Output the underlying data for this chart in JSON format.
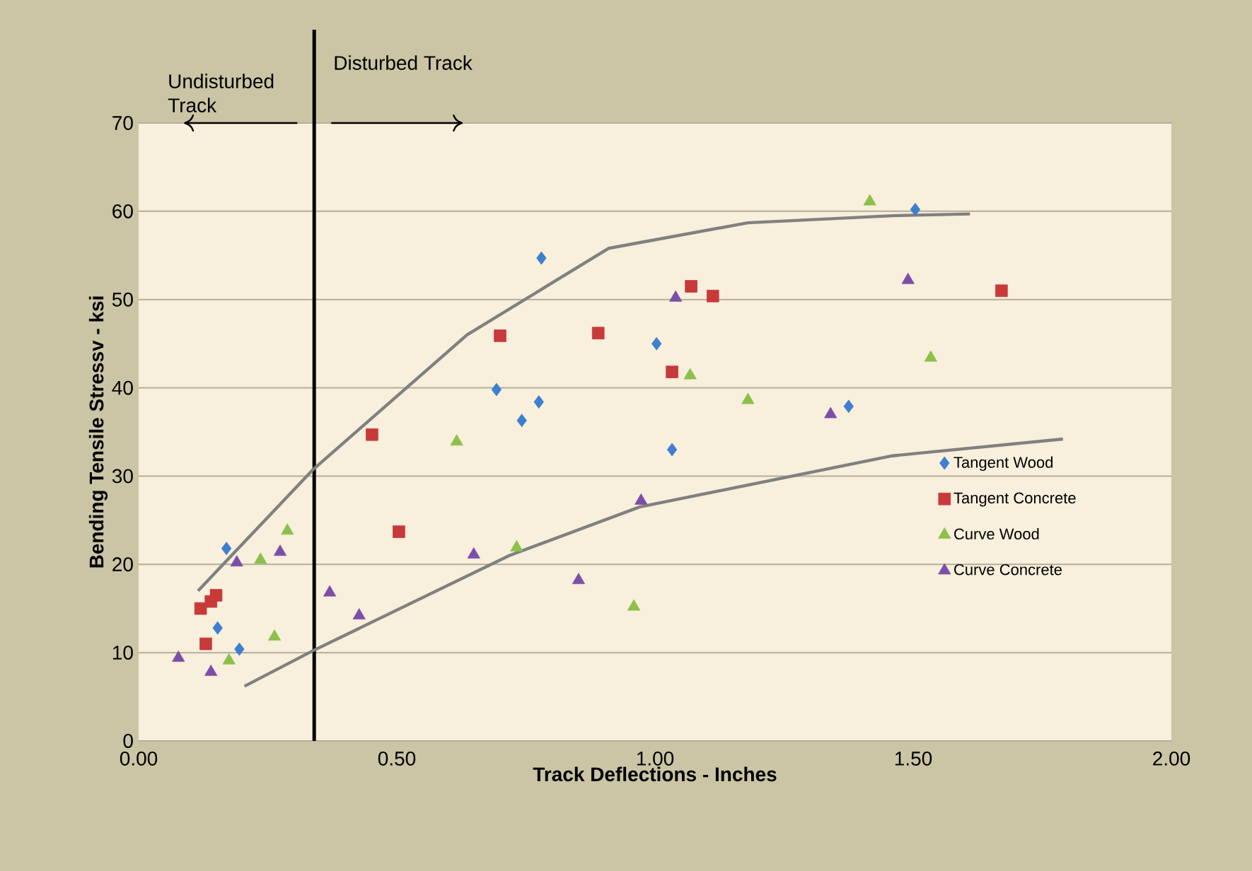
{
  "chart_data": {
    "type": "scatter",
    "xlabel": "Track Deflections - Inches",
    "ylabel": "Bending Tensile Stressv - ksi",
    "annotations": [
      "Undisturbed Track",
      "Disturbed Track"
    ],
    "xlim": [
      0,
      2
    ],
    "ylim": [
      0,
      70
    ],
    "xticks": [
      {
        "value": 0,
        "label": "0.00"
      },
      {
        "value": 0.5,
        "label": "0.50"
      },
      {
        "value": 1,
        "label": "1.00"
      },
      {
        "value": 1.5,
        "label": "1.50"
      },
      {
        "value": 2,
        "label": "2.00"
      }
    ],
    "yticks": [
      0,
      10,
      20,
      30,
      40,
      50,
      60,
      70
    ],
    "grid": "y",
    "legend": "right",
    "ref_lines": [
      {
        "axis": "x",
        "value": 0.34,
        "color": "#000000"
      }
    ],
    "series": [
      {
        "name": "Tangent Wood",
        "color": "#3e7fd0",
        "marker": "diamond",
        "x": [
          0.17,
          0.153,
          0.195,
          0.693,
          0.78,
          1.003,
          0.775,
          0.742,
          1.375,
          1.033,
          1.504
        ],
        "values": [
          21.8,
          12.8,
          10.4,
          39.8,
          54.7,
          45.0,
          38.4,
          36.3,
          37.9,
          33.0,
          60.2
        ]
      },
      {
        "name": "Tangent Concrete",
        "color": "#c8393a",
        "marker": "square",
        "x": [
          0.12,
          0.14,
          0.15,
          0.13,
          0.504,
          0.452,
          0.7,
          1.07,
          1.112,
          0.89,
          1.033,
          1.671
        ],
        "values": [
          15.0,
          15.8,
          16.5,
          11.0,
          23.7,
          34.7,
          45.9,
          51.5,
          50.4,
          46.2,
          41.8,
          51.0
        ]
      },
      {
        "name": "Curve Wood",
        "color": "#8cc04a",
        "marker": "triangle",
        "x": [
          0.288,
          0.236,
          0.263,
          0.175,
          0.616,
          1.068,
          1.18,
          0.732,
          0.959,
          1.416,
          1.534
        ],
        "values": [
          23.8,
          20.5,
          11.8,
          9.1,
          33.9,
          41.4,
          38.6,
          21.9,
          15.2,
          61.1,
          43.4
        ]
      },
      {
        "name": "Curve Concrete",
        "color": "#7b4fa8",
        "marker": "triangle",
        "x": [
          0.077,
          0.14,
          0.19,
          0.274,
          0.37,
          0.427,
          0.649,
          1.04,
          1.34,
          0.973,
          0.852,
          1.49
        ],
        "values": [
          9.4,
          7.8,
          20.2,
          21.4,
          16.8,
          14.2,
          21.1,
          50.2,
          37.0,
          27.2,
          18.2,
          52.2
        ]
      },
      {
        "type": "line",
        "color": "#808080",
        "marker": "none",
        "x": [
          0.115,
          0.337,
          0.636,
          0.91,
          1.18,
          1.46,
          1.61
        ],
        "values": [
          17,
          30.7,
          46,
          55.8,
          58.7,
          59.5,
          59.7
        ]
      },
      {
        "type": "line",
        "color": "#808080",
        "marker": "none",
        "x": [
          0.205,
          0.337,
          0.718,
          0.97,
          1.46,
          1.79
        ],
        "values": [
          6.2,
          10.2,
          21,
          26.5,
          32.3,
          34.2
        ]
      }
    ]
  }
}
